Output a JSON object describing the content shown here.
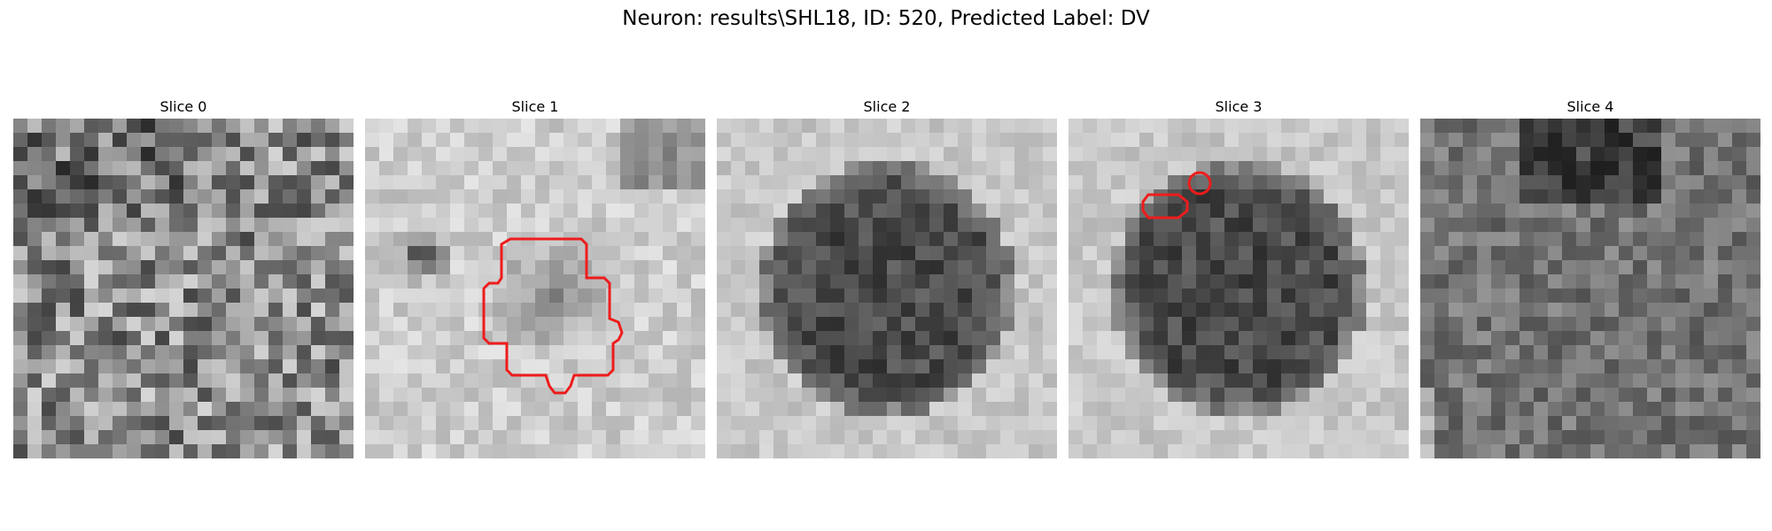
{
  "figure": {
    "title": "Neuron: results\\SHL18, ID: 520, Predicted Label: DV"
  },
  "panels": [
    {
      "label": "Slice 0",
      "pattern": "noise",
      "contours": []
    },
    {
      "label": "Slice 1",
      "pattern": "soft-blob",
      "contours": [
        "roi-contour"
      ]
    },
    {
      "label": "Slice 2",
      "pattern": "dark-disk",
      "contours": []
    },
    {
      "label": "Slice 3",
      "pattern": "dark-disk",
      "contours": [
        "roi-contour-small",
        "roi-contour-circle"
      ]
    },
    {
      "label": "Slice 4",
      "pattern": "dark-field",
      "contours": []
    }
  ],
  "colors": {
    "contour": "#ee1c1c",
    "background": "#ffffff"
  },
  "colormap": "grayscale"
}
